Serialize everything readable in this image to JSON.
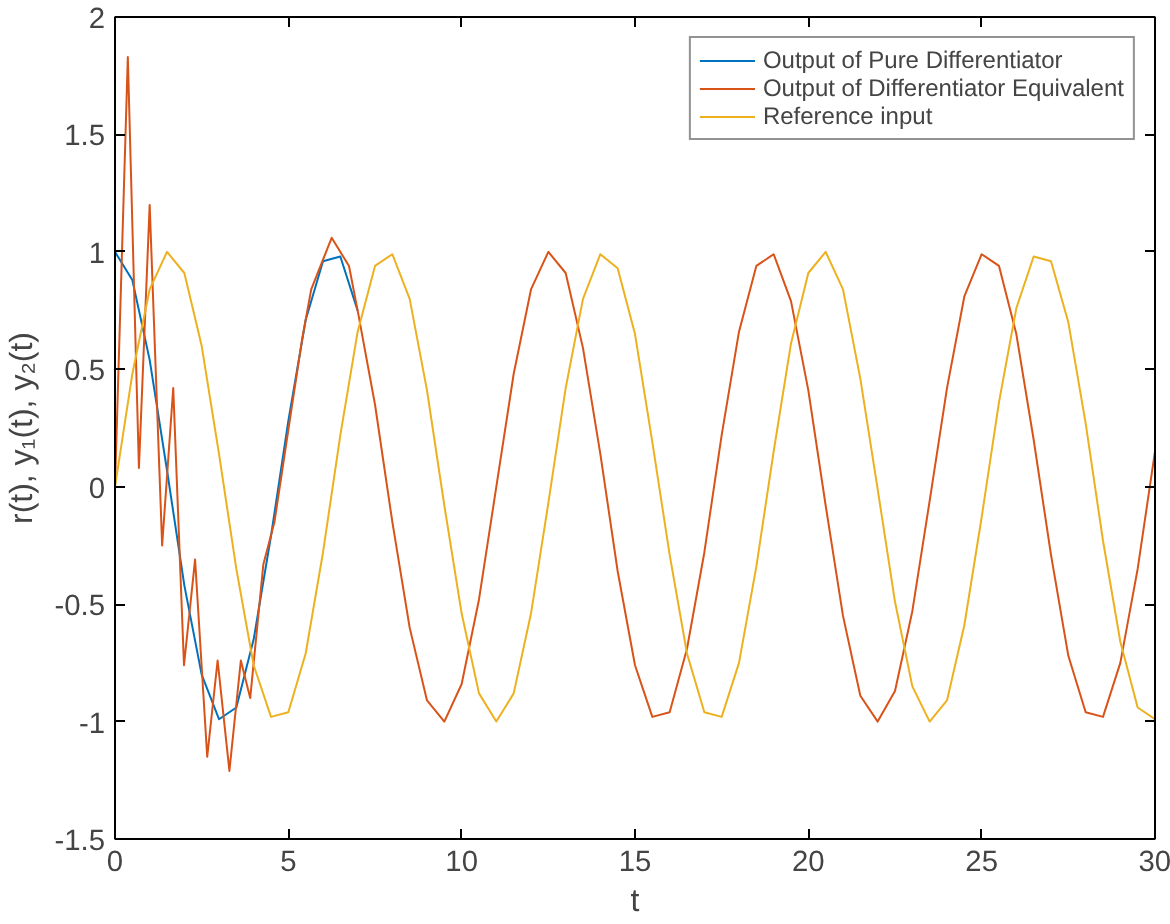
{
  "chart_data": {
    "type": "line",
    "xlabel": "t",
    "ylabel": "r(t), y₁(t), y₂(t)",
    "x": [
      0,
      0.5,
      1,
      1.5,
      2,
      2.5,
      3,
      3.5,
      4,
      4.5,
      5,
      5.5,
      6,
      6.5,
      7,
      7.5,
      8,
      8.5,
      9,
      9.5,
      10,
      10.5,
      11,
      11.5,
      12,
      12.5,
      13,
      13.5,
      14,
      14.5,
      15,
      15.5,
      16,
      16.5,
      17,
      17.5,
      18,
      18.5,
      19,
      19.5,
      20,
      20.5,
      21,
      21.5,
      22,
      22.5,
      23,
      23.5,
      24,
      24.5,
      25,
      25.5,
      26,
      26.5,
      27,
      27.5,
      28,
      28.5,
      29,
      29.5,
      30
    ],
    "series": [
      {
        "name": "Output of Pure Differentiator",
        "color": "#0072bd",
        "values": [
          1,
          0.88,
          0.54,
          0.07,
          -0.42,
          -0.8,
          -0.99,
          -0.94,
          -0.65,
          -0.21,
          0.28,
          0.71,
          0.96,
          0.98,
          0.75,
          null,
          null,
          null,
          null,
          null,
          null,
          null,
          null,
          null,
          null,
          null,
          null,
          null,
          null,
          null,
          null,
          null,
          null,
          null,
          null,
          null,
          null,
          null,
          null,
          null,
          null,
          null,
          null,
          null,
          null,
          null,
          null,
          null,
          null,
          null,
          null,
          null,
          null,
          null,
          null,
          null,
          null,
          null,
          null,
          null,
          null
        ]
      },
      {
        "name": "Output of Differentiator Equivalent",
        "color": "#d95319",
        "x": [
          0,
          0.37,
          0.69,
          1.0,
          1.36,
          1.68,
          1.99,
          2.31,
          2.66,
          2.96,
          3.3,
          3.63,
          3.9,
          4.28,
          4.6,
          5.07,
          5.4,
          5.66,
          6.25,
          6.75,
          7,
          7.5,
          8,
          8.5,
          9,
          9.5,
          10,
          10.5,
          11,
          11.5,
          12,
          12.5,
          13,
          13.5,
          14,
          14.5,
          15,
          15.5,
          16,
          16.5,
          17,
          17.5,
          18,
          18.5,
          19,
          19.5,
          20,
          20.5,
          21,
          21.5,
          22,
          22.5,
          23,
          23.5,
          24,
          24.5,
          25,
          25.5,
          26,
          26.5,
          27,
          27.5,
          28,
          28.5,
          29,
          29.5,
          30
        ],
        "values": [
          0,
          1.83,
          0.08,
          1.2,
          -0.25,
          0.42,
          -0.76,
          -0.31,
          -1.15,
          -0.74,
          -1.21,
          -0.74,
          -0.9,
          -0.33,
          -0.15,
          0.31,
          0.63,
          0.84,
          1.06,
          0.94,
          0.75,
          0.35,
          -0.15,
          -0.6,
          -0.91,
          -1.0,
          -0.84,
          -0.48,
          0.0,
          0.48,
          0.84,
          1.0,
          0.91,
          0.59,
          0.14,
          -0.36,
          -0.76,
          -0.98,
          -0.96,
          -0.69,
          -0.28,
          0.22,
          0.66,
          0.94,
          0.99,
          0.79,
          0.41,
          -0.08,
          -0.55,
          -0.89,
          -1.0,
          -0.87,
          -0.53,
          -0.06,
          0.42,
          0.81,
          0.99,
          0.94,
          0.65,
          0.2,
          -0.29,
          -0.72,
          -0.96,
          -0.98,
          -0.75,
          -0.35,
          0.15
        ]
      },
      {
        "name": "Reference input",
        "color": "#edb120",
        "values": [
          0,
          0.48,
          0.84,
          1.0,
          0.91,
          0.6,
          0.14,
          -0.35,
          -0.76,
          -0.98,
          -0.96,
          -0.71,
          -0.28,
          0.22,
          0.66,
          0.94,
          0.99,
          0.8,
          0.41,
          -0.08,
          -0.54,
          -0.88,
          -1.0,
          -0.88,
          -0.54,
          -0.07,
          0.42,
          0.8,
          0.99,
          0.93,
          0.65,
          0.19,
          -0.29,
          -0.71,
          -0.96,
          -0.98,
          -0.75,
          -0.34,
          0.15,
          0.61,
          0.91,
          1.0,
          0.84,
          0.46,
          -0.01,
          -0.49,
          -0.85,
          -1.0,
          -0.91,
          -0.59,
          -0.13,
          0.36,
          0.76,
          0.98,
          0.96,
          0.7,
          0.27,
          -0.23,
          -0.66,
          -0.94,
          -0.99
        ]
      }
    ],
    "xlim": [
      0,
      30
    ],
    "ylim": [
      -1.5,
      2
    ],
    "xticks": [
      0,
      5,
      10,
      15,
      20,
      25,
      30
    ],
    "yticks": [
      -1.5,
      -1,
      -0.5,
      0,
      0.5,
      1,
      1.5,
      2
    ],
    "legend": "top right",
    "line_style": "solid"
  }
}
